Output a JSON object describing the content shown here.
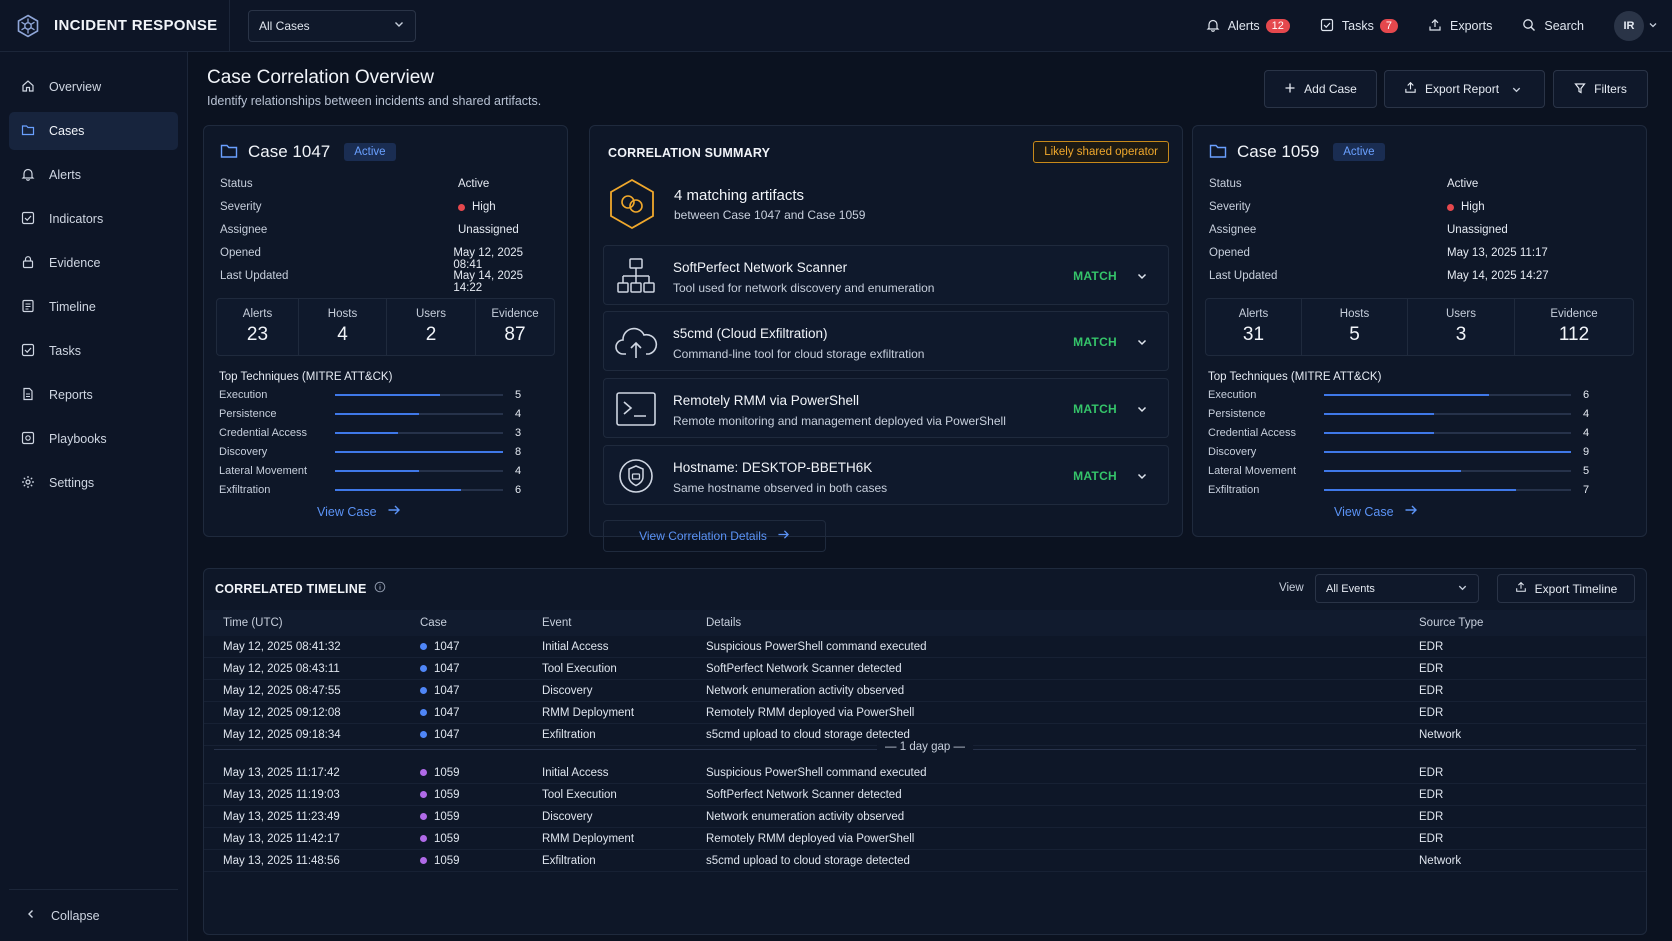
{
  "app": {
    "title": "INCIDENT RESPONSE",
    "case_filter": "All Cases"
  },
  "top_actions": {
    "alerts_label": "Alerts",
    "alerts_count": "12",
    "tasks_label": "Tasks",
    "tasks_count": "7",
    "exports_label": "Exports",
    "search_label": "Search",
    "avatar_initials": "IR"
  },
  "sidebar": {
    "items": [
      {
        "label": "Overview",
        "icon": "home-icon"
      },
      {
        "label": "Cases",
        "icon": "folder-icon",
        "active": true
      },
      {
        "label": "Alerts",
        "icon": "bell-icon"
      },
      {
        "label": "Indicators",
        "icon": "indicator-icon"
      },
      {
        "label": "Evidence",
        "icon": "lock-icon"
      },
      {
        "label": "Timeline",
        "icon": "timeline-icon"
      },
      {
        "label": "Tasks",
        "icon": "checkbox-icon"
      },
      {
        "label": "Reports",
        "icon": "document-icon"
      },
      {
        "label": "Playbooks",
        "icon": "playbook-icon"
      },
      {
        "label": "Settings",
        "icon": "gear-icon"
      }
    ],
    "collapse_label": "Collapse"
  },
  "page": {
    "title": "Case Correlation Overview",
    "subtitle": "Identify relationships between incidents and shared artifacts.",
    "add_case": "Add Case",
    "export_report": "Export Report",
    "filters": "Filters"
  },
  "labels": {
    "status": "Status",
    "severity": "Severity",
    "assignee": "Assignee",
    "opened": "Opened",
    "last_updated": "Last Updated",
    "alerts": "Alerts",
    "hosts": "Hosts",
    "users": "Users",
    "evidence": "Evidence",
    "top_techniques": "Top Techniques (MITRE ATT&CK)",
    "view_case": "View Case"
  },
  "colors": {
    "accent": "#3f78e8",
    "severity_high": "#e5484d",
    "match": "#35c46a",
    "case_1047": "#4f86f7",
    "case_1059": "#b06ae8",
    "warning": "#f0a82c"
  },
  "case_left": {
    "name": "Case 1047",
    "tag": "Active",
    "status": "Active",
    "severity": "High",
    "assignee": "Unassigned",
    "opened": "May 12, 2025 08:41",
    "last_updated": "May 14, 2025 14:22",
    "stats": {
      "alerts": "23",
      "hosts": "4",
      "users": "2",
      "evidence": "87"
    },
    "techniques": [
      {
        "name": "Execution",
        "value": "5"
      },
      {
        "name": "Persistence",
        "value": "4"
      },
      {
        "name": "Credential Access",
        "value": "3"
      },
      {
        "name": "Discovery",
        "value": "8"
      },
      {
        "name": "Lateral Movement",
        "value": "4"
      },
      {
        "name": "Exfiltration",
        "value": "6"
      }
    ],
    "technique_max": 8
  },
  "case_right": {
    "name": "Case 1059",
    "tag": "Active",
    "status": "Active",
    "severity": "High",
    "assignee": "Unassigned",
    "opened": "May 13, 2025 11:17",
    "last_updated": "May 14, 2025 14:27",
    "stats": {
      "alerts": "31",
      "hosts": "5",
      "users": "3",
      "evidence": "112"
    },
    "techniques": [
      {
        "name": "Execution",
        "value": "6"
      },
      {
        "name": "Persistence",
        "value": "4"
      },
      {
        "name": "Credential Access",
        "value": "4"
      },
      {
        "name": "Discovery",
        "value": "9"
      },
      {
        "name": "Lateral Movement",
        "value": "5"
      },
      {
        "name": "Exfiltration",
        "value": "7"
      }
    ],
    "technique_max": 9
  },
  "correlation": {
    "title": "CORRELATION SUMMARY",
    "tag": "Likely shared operator",
    "headline": "4 matching artifacts",
    "subline": "between Case 1047 and Case 1059",
    "artifacts": [
      {
        "title": "SoftPerfect Network Scanner",
        "desc": "Tool used for network discovery and enumeration",
        "status": "MATCH",
        "icon": "network-icon"
      },
      {
        "title": "s5cmd (Cloud Exfiltration)",
        "desc": "Command-line tool for cloud storage exfiltration",
        "status": "MATCH",
        "icon": "cloud-upload-icon"
      },
      {
        "title": "Remotely RMM via PowerShell",
        "desc": "Remote monitoring and management deployed via PowerShell",
        "status": "MATCH",
        "icon": "terminal-icon"
      },
      {
        "title": "Hostname: DESKTOP-BBETH6K",
        "desc": "Same hostname observed in both cases",
        "status": "MATCH",
        "icon": "hostname-icon"
      }
    ],
    "details_link": "View Correlation Details"
  },
  "timeline": {
    "title": "CORRELATED TIMELINE",
    "view_label": "View",
    "view_value": "All Events",
    "export_label": "Export Timeline",
    "columns": {
      "time": "Time (UTC)",
      "case": "Case",
      "event": "Event",
      "details": "Details",
      "source": "Source Type"
    },
    "gap_label": "— 1 day gap —",
    "rows_a": [
      {
        "time": "May 12, 2025 08:41:32",
        "case": "1047",
        "event": "Initial Access",
        "details": "Suspicious PowerShell command executed",
        "source": "EDR"
      },
      {
        "time": "May 12, 2025 08:43:11",
        "case": "1047",
        "event": "Tool Execution",
        "details": "SoftPerfect Network Scanner detected",
        "source": "EDR"
      },
      {
        "time": "May 12, 2025 08:47:55",
        "case": "1047",
        "event": "Discovery",
        "details": "Network enumeration activity observed",
        "source": "EDR"
      },
      {
        "time": "May 12, 2025 09:12:08",
        "case": "1047",
        "event": "RMM Deployment",
        "details": "Remotely RMM deployed via PowerShell",
        "source": "EDR"
      },
      {
        "time": "May 12, 2025 09:18:34",
        "case": "1047",
        "event": "Exfiltration",
        "details": "s5cmd upload to cloud storage detected",
        "source": "Network"
      }
    ],
    "rows_b": [
      {
        "time": "May 13, 2025 11:17:42",
        "case": "1059",
        "event": "Initial Access",
        "details": "Suspicious PowerShell command executed",
        "source": "EDR"
      },
      {
        "time": "May 13, 2025 11:19:03",
        "case": "1059",
        "event": "Tool Execution",
        "details": "SoftPerfect Network Scanner detected",
        "source": "EDR"
      },
      {
        "time": "May 13, 2025 11:23:49",
        "case": "1059",
        "event": "Discovery",
        "details": "Network enumeration activity observed",
        "source": "EDR"
      },
      {
        "time": "May 13, 2025 11:42:17",
        "case": "1059",
        "event": "RMM Deployment",
        "details": "Remotely RMM deployed via PowerShell",
        "source": "EDR"
      },
      {
        "time": "May 13, 2025 11:48:56",
        "case": "1059",
        "event": "Exfiltration",
        "details": "s5cmd upload to cloud storage detected",
        "source": "Network"
      }
    ]
  }
}
